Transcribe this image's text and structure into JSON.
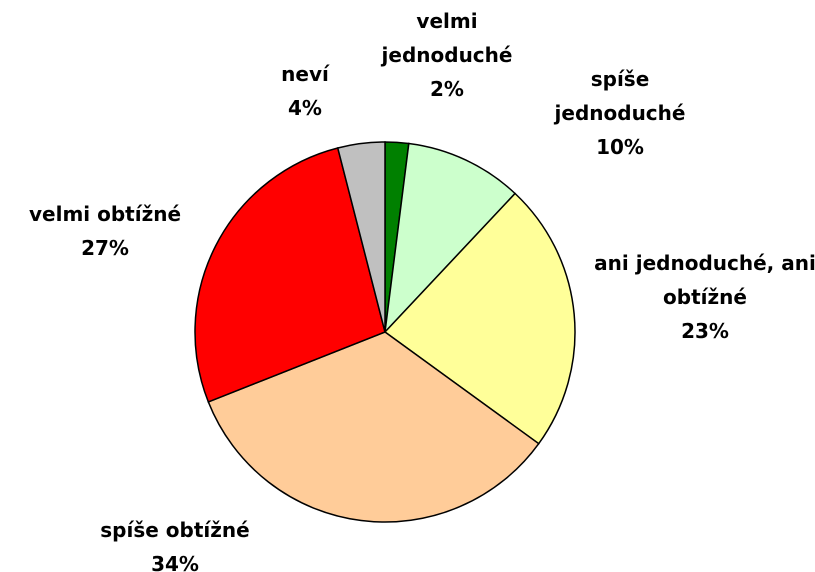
{
  "chart_data": {
    "type": "pie",
    "categories": [
      "velmi jednoduché",
      "spíše jednoduché",
      "ani jednoduché, ani obtížné",
      "spíše obtížné",
      "velmi obtížné",
      "neví"
    ],
    "values": [
      2,
      10,
      23,
      34,
      27,
      4
    ],
    "value_labels": [
      "2%",
      "10%",
      "23%",
      "34%",
      "27%",
      "4%"
    ],
    "colors": [
      "#008000",
      "#ccffcc",
      "#ffff99",
      "#ffcc99",
      "#ff0000",
      "#c0c0c0"
    ]
  }
}
